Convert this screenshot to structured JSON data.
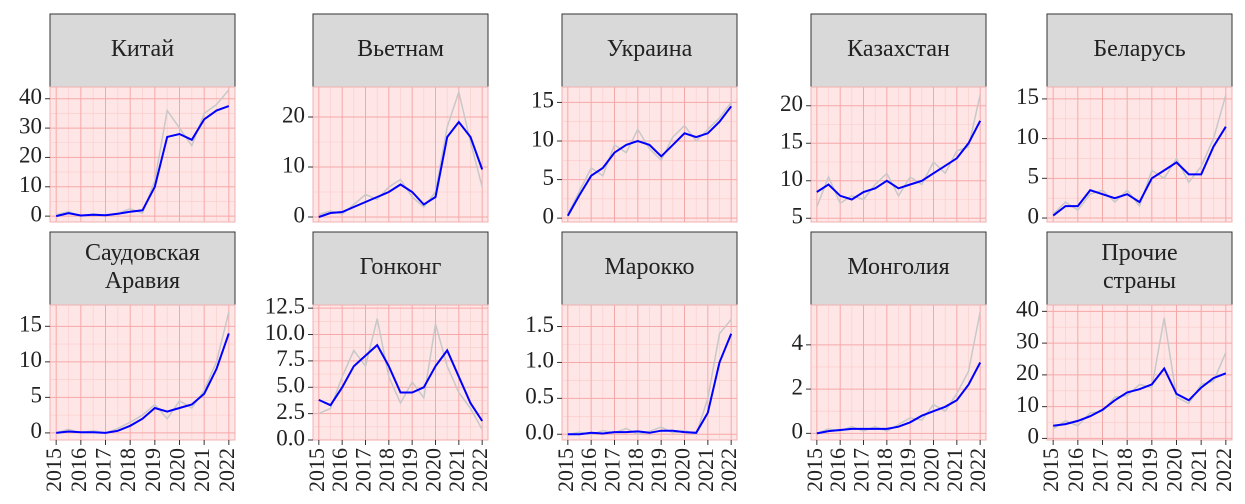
{
  "chart_data": [
    {
      "type": "line",
      "title": "Китай",
      "x": [
        2015,
        2015.5,
        2016,
        2016.5,
        2017,
        2017.5,
        2018,
        2018.5,
        2019,
        2019.5,
        2020,
        2020.5,
        2021,
        2021.5,
        2022
      ],
      "xlim": [
        2014.75,
        2022.25
      ],
      "xticks": [
        2015,
        2016,
        2017,
        2018,
        2019,
        2020,
        2021,
        2022
      ],
      "ylim": [
        -2,
        44
      ],
      "yticks": [
        0,
        10,
        20,
        30,
        40
      ],
      "grid": true,
      "series": [
        {
          "color": "#c8c8c8",
          "values": [
            0.5,
            1.5,
            0,
            0.8,
            0.2,
            1,
            2.5,
            1,
            12,
            36,
            30,
            24,
            35,
            38,
            43
          ]
        },
        {
          "color": "#0000ff",
          "values": [
            0,
            1,
            0.2,
            0.5,
            0.3,
            0.8,
            1.5,
            2,
            10,
            27,
            28,
            26,
            33,
            36,
            37.5
          ]
        }
      ]
    },
    {
      "type": "line",
      "title": "Вьетнам",
      "x": [
        2015,
        2015.5,
        2016,
        2016.5,
        2017,
        2017.5,
        2018,
        2018.5,
        2019,
        2019.5,
        2020,
        2020.5,
        2021,
        2021.5,
        2022
      ],
      "xlim": [
        2014.75,
        2022.25
      ],
      "xticks": [
        2015,
        2016,
        2017,
        2018,
        2019,
        2020,
        2021,
        2022
      ],
      "ylim": [
        -1,
        26
      ],
      "yticks": [
        0,
        10,
        20
      ],
      "grid": true,
      "series": [
        {
          "color": "#c8c8c8",
          "values": [
            0.5,
            1.2,
            0.6,
            2.5,
            4.5,
            3.5,
            6,
            7.5,
            4,
            2,
            5,
            18,
            25,
            15,
            6
          ]
        },
        {
          "color": "#0000ff",
          "values": [
            0,
            0.8,
            1,
            2,
            3,
            4,
            5,
            6.5,
            5,
            2.5,
            4,
            16,
            19,
            16,
            9.5
          ]
        }
      ]
    },
    {
      "type": "line",
      "title": "Украина",
      "x": [
        2015,
        2015.5,
        2016,
        2016.5,
        2017,
        2017.5,
        2018,
        2018.5,
        2019,
        2019.5,
        2020,
        2020.5,
        2021,
        2021.5,
        2022
      ],
      "xlim": [
        2014.75,
        2022.25
      ],
      "xticks": [
        2015,
        2016,
        2017,
        2018,
        2019,
        2020,
        2021,
        2022
      ],
      "ylim": [
        -0.5,
        17
      ],
      "yticks": [
        0,
        5,
        10,
        15
      ],
      "grid": true,
      "series": [
        {
          "color": "#c8c8c8",
          "values": [
            0.5,
            3.5,
            6.5,
            5.5,
            9.5,
            8.5,
            11.5,
            9,
            7.5,
            10.5,
            12,
            10,
            11.5,
            13,
            15
          ]
        },
        {
          "color": "#0000ff",
          "values": [
            0.3,
            3,
            5.5,
            6.5,
            8.5,
            9.5,
            10,
            9.5,
            8,
            9.5,
            11,
            10.5,
            11,
            12.5,
            14.5
          ]
        }
      ]
    },
    {
      "type": "line",
      "title": "Казахстан",
      "x": [
        2015,
        2015.5,
        2016,
        2016.5,
        2017,
        2017.5,
        2018,
        2018.5,
        2019,
        2019.5,
        2020,
        2020.5,
        2021,
        2021.5,
        2022
      ],
      "xlim": [
        2014.75,
        2022.25
      ],
      "xticks": [
        2015,
        2016,
        2017,
        2018,
        2019,
        2020,
        2021,
        2022
      ],
      "ylim": [
        4.5,
        22.5
      ],
      "yticks": [
        5,
        10,
        15,
        20
      ],
      "grid": true,
      "series": [
        {
          "color": "#c8c8c8",
          "values": [
            6.5,
            10.5,
            7,
            8,
            7.5,
            9.5,
            11,
            8,
            10.5,
            9.5,
            12.5,
            11,
            14,
            14.5,
            21.5
          ]
        },
        {
          "color": "#0000ff",
          "values": [
            8.5,
            9.5,
            8,
            7.5,
            8.5,
            9,
            10,
            9,
            9.5,
            10,
            11,
            12,
            13,
            15,
            18
          ]
        }
      ]
    },
    {
      "type": "line",
      "title": "Беларусь",
      "x": [
        2015,
        2015.5,
        2016,
        2016.5,
        2017,
        2017.5,
        2018,
        2018.5,
        2019,
        2019.5,
        2020,
        2020.5,
        2021,
        2021.5,
        2022
      ],
      "xlim": [
        2014.75,
        2022.25
      ],
      "xticks": [
        2015,
        2016,
        2017,
        2018,
        2019,
        2020,
        2021,
        2022
      ],
      "ylim": [
        -0.5,
        16.5
      ],
      "yticks": [
        0,
        5,
        10,
        15
      ],
      "grid": true,
      "series": [
        {
          "color": "#c8c8c8",
          "values": [
            0.5,
            2,
            1,
            3,
            3.5,
            2,
            3.5,
            1.5,
            6,
            5,
            7.5,
            4.5,
            6.5,
            10,
            15.5
          ]
        },
        {
          "color": "#0000ff",
          "values": [
            0.3,
            1.5,
            1.5,
            3.5,
            3,
            2.5,
            3,
            2,
            5,
            6,
            7,
            5.5,
            5.5,
            9,
            11.5
          ]
        }
      ]
    },
    {
      "type": "line",
      "title": [
        "Саудовская",
        "Аравия"
      ],
      "x": [
        2015,
        2015.5,
        2016,
        2016.5,
        2017,
        2017.5,
        2018,
        2018.5,
        2019,
        2019.5,
        2020,
        2020.5,
        2021,
        2021.5,
        2022
      ],
      "xlim": [
        2014.75,
        2022.25
      ],
      "xticks": [
        2015,
        2016,
        2017,
        2018,
        2019,
        2020,
        2021,
        2022
      ],
      "ylim": [
        -1,
        18
      ],
      "yticks": [
        0,
        5,
        10,
        15
      ],
      "grid": true,
      "series": [
        {
          "color": "#c8c8c8",
          "values": [
            0,
            0.5,
            0,
            0.3,
            0,
            0.6,
            1.5,
            2.5,
            4,
            2,
            4.5,
            3.5,
            6,
            10,
            17
          ]
        },
        {
          "color": "#0000ff",
          "values": [
            0,
            0.2,
            0.1,
            0.1,
            0,
            0.3,
            1,
            2,
            3.5,
            3,
            3.5,
            4,
            5.5,
            9,
            14
          ]
        }
      ]
    },
    {
      "type": "line",
      "title": "Гонконг",
      "x": [
        2015,
        2015.5,
        2016,
        2016.5,
        2017,
        2017.5,
        2018,
        2018.5,
        2019,
        2019.5,
        2020,
        2020.5,
        2021,
        2021.5,
        2022
      ],
      "xlim": [
        2014.75,
        2022.25
      ],
      "xticks": [
        2015,
        2016,
        2017,
        2018,
        2019,
        2020,
        2021,
        2022
      ],
      "ylim": [
        0,
        12.8
      ],
      "yticks": [
        {
          "value": 0,
          "label": "0.0"
        },
        {
          "value": 2.5,
          "label": "2.5"
        },
        {
          "value": 5,
          "label": "5.0"
        },
        {
          "value": 7.5,
          "label": "7.5"
        },
        {
          "value": 10,
          "label": "10.0"
        },
        {
          "value": 12.5,
          "label": "12.5"
        }
      ],
      "grid": true,
      "series": [
        {
          "color": "#c8c8c8",
          "values": [
            2.5,
            3,
            6,
            8.5,
            7,
            11.5,
            6,
            3.5,
            5.5,
            4,
            11,
            7,
            4.5,
            3,
            1
          ]
        },
        {
          "color": "#0000ff",
          "values": [
            3.8,
            3.3,
            5,
            7,
            8,
            9,
            7,
            4.5,
            4.5,
            5,
            7,
            8.5,
            6,
            3.5,
            1.8
          ]
        }
      ]
    },
    {
      "type": "line",
      "title": "Марокко",
      "x": [
        2015,
        2015.5,
        2016,
        2016.5,
        2017,
        2017.5,
        2018,
        2018.5,
        2019,
        2019.5,
        2020,
        2020.5,
        2021,
        2021.5,
        2022
      ],
      "xlim": [
        2014.75,
        2022.25
      ],
      "xticks": [
        2015,
        2016,
        2017,
        2018,
        2019,
        2020,
        2021,
        2022
      ],
      "ylim": [
        -0.08,
        1.8
      ],
      "yticks": [
        {
          "value": 0,
          "label": "0.0"
        },
        {
          "value": 0.5,
          "label": "0.5"
        },
        {
          "value": 1,
          "label": "1.0"
        },
        {
          "value": 1.5,
          "label": "1.5"
        }
      ],
      "grid": true,
      "series": [
        {
          "color": "#c8c8c8",
          "values": [
            0,
            0.03,
            0,
            0.05,
            0.02,
            0.08,
            0,
            0.04,
            0.1,
            0.02,
            0.05,
            0,
            0.5,
            1.4,
            1.6
          ]
        },
        {
          "color": "#0000ff",
          "values": [
            0,
            0,
            0.02,
            0.01,
            0.03,
            0.03,
            0.04,
            0.02,
            0.05,
            0.05,
            0.03,
            0.02,
            0.3,
            1,
            1.4
          ]
        }
      ]
    },
    {
      "type": "line",
      "title": "Монголия",
      "x": [
        2015,
        2015.5,
        2016,
        2016.5,
        2017,
        2017.5,
        2018,
        2018.5,
        2019,
        2019.5,
        2020,
        2020.5,
        2021,
        2021.5,
        2022
      ],
      "xlim": [
        2014.75,
        2022.25
      ],
      "xticks": [
        2015,
        2016,
        2017,
        2018,
        2019,
        2020,
        2021,
        2022
      ],
      "ylim": [
        -0.3,
        5.8
      ],
      "yticks": [
        0,
        2,
        4
      ],
      "grid": true,
      "series": [
        {
          "color": "#c8c8c8",
          "values": [
            0,
            0.2,
            0.1,
            0.3,
            0.1,
            0.3,
            0.1,
            0.4,
            0.7,
            0.6,
            1.3,
            1,
            1.8,
            2.8,
            5.5
          ]
        },
        {
          "color": "#0000ff",
          "values": [
            0,
            0.1,
            0.15,
            0.2,
            0.2,
            0.2,
            0.2,
            0.3,
            0.5,
            0.8,
            1,
            1.2,
            1.5,
            2.2,
            3.2
          ]
        }
      ]
    },
    {
      "type": "line",
      "title": [
        "Прочие",
        "страны"
      ],
      "x": [
        2015,
        2015.5,
        2016,
        2016.5,
        2017,
        2017.5,
        2018,
        2018.5,
        2019,
        2019.5,
        2020,
        2020.5,
        2021,
        2021.5,
        2022
      ],
      "xlim": [
        2014.75,
        2022.25
      ],
      "xticks": [
        2015,
        2016,
        2017,
        2018,
        2019,
        2020,
        2021,
        2022
      ],
      "ylim": [
        -0.5,
        42
      ],
      "yticks": [
        0,
        10,
        20,
        30,
        40
      ],
      "grid": true,
      "series": [
        {
          "color": "#c8c8c8",
          "values": [
            3,
            5.5,
            4,
            8,
            8.5,
            13,
            13.5,
            17,
            16,
            38,
            13,
            11,
            17,
            18,
            27
          ]
        },
        {
          "color": "#0000ff",
          "values": [
            4,
            4.5,
            5.5,
            7,
            9,
            12,
            14.5,
            15.5,
            17,
            22,
            14,
            12,
            16,
            19,
            20.5
          ]
        }
      ]
    }
  ]
}
